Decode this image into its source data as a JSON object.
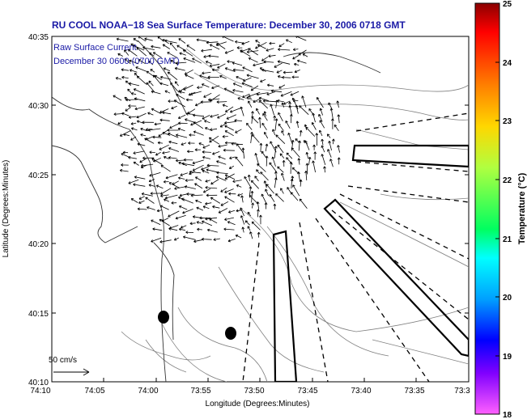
{
  "title": "RU COOL  NOAA−18  Sea Surface Temperature:  December 30, 2006 0718 GMT",
  "legend": {
    "line1": "Raw Surface Current",
    "line2": "December 30 0600 (0700 GMT)",
    "scale_label": "50 cm/s"
  },
  "axes": {
    "xlabel": "Longitude (Degrees:Minutes)",
    "ylabel": "Latitude (Degrees:Minutes)",
    "xticks": [
      "74:10",
      "74:05",
      "74:00",
      "73:55",
      "73:50",
      "73:45",
      "73:40",
      "73:35",
      "73:3"
    ],
    "yticks": [
      "40:35",
      "40:30",
      "40:25",
      "40:20",
      "40:15",
      "40:10"
    ]
  },
  "colorbar": {
    "label": "Temperature (°C)",
    "ticks": [
      "25",
      "24",
      "23",
      "22",
      "21",
      "20",
      "19",
      "18"
    ],
    "min": 18,
    "max": 25
  },
  "colors": {
    "title": "#1a1aa6",
    "coast": "#000000",
    "bathymetry": "#808080"
  }
}
